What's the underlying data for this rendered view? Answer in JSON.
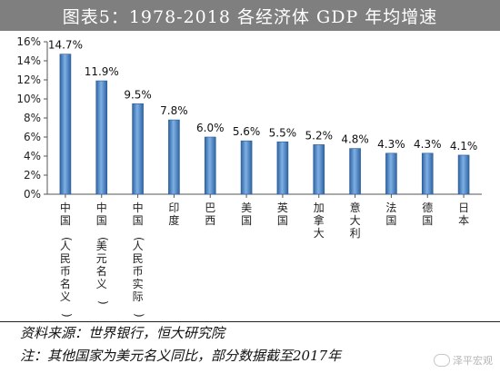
{
  "title": "图表5：1978-2018 各经济体 GDP 年均增速",
  "source": "资料来源：世界银行，恒大研究院",
  "note": "注：其他国家为美元名义同比，部分数据截至2017年",
  "watermark": "泽平宏观",
  "colors": {
    "bar": "#3f78b8",
    "bar_light": "#6b9fd6",
    "title_bg": "#7f7f7f"
  },
  "chart_data": {
    "type": "bar",
    "title": "图表5：1978-2018 各经济体 GDP 年均增速",
    "xlabel": "",
    "ylabel": "",
    "ylim": [
      0,
      16
    ],
    "yticks": [
      "0%",
      "2%",
      "4%",
      "6%",
      "8%",
      "10%",
      "12%",
      "14%",
      "16%"
    ],
    "grid": false,
    "categories": [
      "中国(人民币名义)",
      "中国(美元名义)",
      "中国(人民币实际)",
      "印度",
      "巴西",
      "美国",
      "英国",
      "加拿大",
      "意大利",
      "法国",
      "德国",
      "日本"
    ],
    "values": [
      14.7,
      11.9,
      9.5,
      7.8,
      6.0,
      5.6,
      5.5,
      5.2,
      4.8,
      4.3,
      4.3,
      4.1
    ],
    "data_labels": [
      "14.7%",
      "11.9%",
      "9.5%",
      "7.8%",
      "6.0%",
      "5.6%",
      "5.5%",
      "5.2%",
      "4.8%",
      "4.3%",
      "4.3%",
      "4.1%"
    ]
  }
}
